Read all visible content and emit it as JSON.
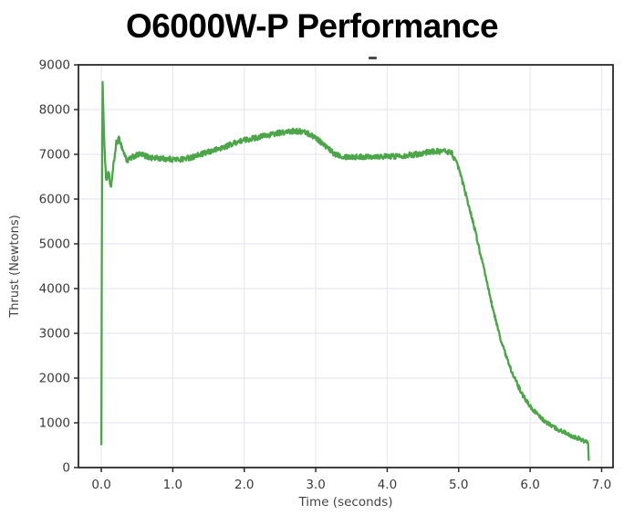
{
  "title": "O6000W-P Performance",
  "chart_data": {
    "type": "line",
    "title": "O6000W-P Performance",
    "xlabel": "Time (seconds)",
    "ylabel": "Thrust (Newtons)",
    "xlim": [
      -0.32,
      7.16
    ],
    "ylim": [
      0,
      9000
    ],
    "xticks": [
      0,
      1,
      2,
      3,
      4,
      5,
      6,
      7
    ],
    "xtick_labels": [
      "0.0",
      "1.0",
      "2.0",
      "3.0",
      "4.0",
      "5.0",
      "6.0",
      "7.0"
    ],
    "yticks": [
      0,
      1000,
      2000,
      3000,
      4000,
      5000,
      6000,
      7000,
      8000,
      9000
    ],
    "ytick_labels": [
      "0",
      "1000",
      "2000",
      "3000",
      "4000",
      "5000",
      "6000",
      "7000",
      "8000",
      "9000"
    ],
    "grid": true,
    "legend": "none",
    "line_color": "#4ba648",
    "grid_color": "#e8e8f0",
    "spine_color": "#2a2a2a",
    "tick_label_color": "#3a3a3a",
    "axis_label_color": "#444444",
    "noise_amplitude_newtons": 60,
    "series": [
      {
        "name": "thrust",
        "points": [
          [
            0.0,
            500
          ],
          [
            0.015,
            8800
          ],
          [
            0.04,
            7300
          ],
          [
            0.07,
            6350
          ],
          [
            0.1,
            6650
          ],
          [
            0.13,
            6200
          ],
          [
            0.17,
            6750
          ],
          [
            0.21,
            7250
          ],
          [
            0.25,
            7350
          ],
          [
            0.3,
            7100
          ],
          [
            0.36,
            6850
          ],
          [
            0.45,
            6950
          ],
          [
            0.55,
            7000
          ],
          [
            0.7,
            6920
          ],
          [
            0.9,
            6900
          ],
          [
            1.1,
            6880
          ],
          [
            1.3,
            6950
          ],
          [
            1.5,
            7050
          ],
          [
            1.7,
            7150
          ],
          [
            1.9,
            7280
          ],
          [
            2.1,
            7350
          ],
          [
            2.3,
            7420
          ],
          [
            2.5,
            7480
          ],
          [
            2.7,
            7520
          ],
          [
            2.85,
            7500
          ],
          [
            3.0,
            7380
          ],
          [
            3.1,
            7230
          ],
          [
            3.25,
            7020
          ],
          [
            3.4,
            6950
          ],
          [
            3.6,
            6940
          ],
          [
            3.8,
            6960
          ],
          [
            4.0,
            6950
          ],
          [
            4.2,
            6970
          ],
          [
            4.4,
            7000
          ],
          [
            4.6,
            7060
          ],
          [
            4.8,
            7070
          ],
          [
            4.9,
            7040
          ],
          [
            5.0,
            6700
          ],
          [
            5.1,
            6100
          ],
          [
            5.2,
            5500
          ],
          [
            5.3,
            4800
          ],
          [
            5.4,
            4100
          ],
          [
            5.5,
            3400
          ],
          [
            5.6,
            2800
          ],
          [
            5.7,
            2320
          ],
          [
            5.8,
            1930
          ],
          [
            5.9,
            1600
          ],
          [
            6.0,
            1370
          ],
          [
            6.1,
            1190
          ],
          [
            6.2,
            1040
          ],
          [
            6.3,
            930
          ],
          [
            6.4,
            845
          ],
          [
            6.5,
            770
          ],
          [
            6.6,
            700
          ],
          [
            6.7,
            635
          ],
          [
            6.78,
            575
          ],
          [
            6.81,
            545
          ],
          [
            6.82,
            150
          ]
        ]
      }
    ]
  }
}
